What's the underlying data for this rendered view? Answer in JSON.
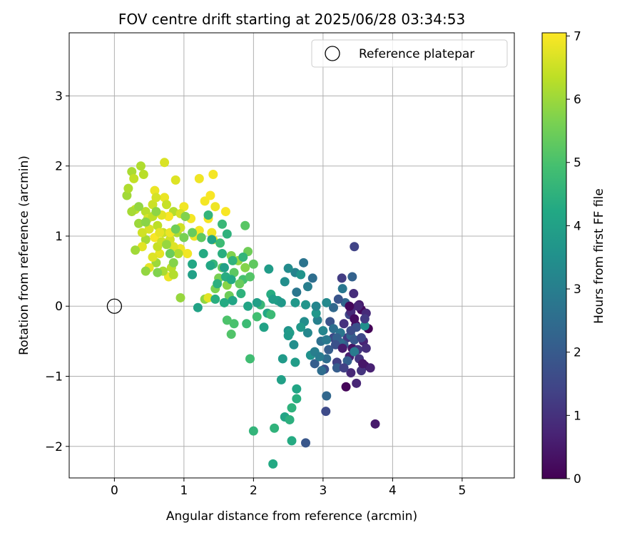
{
  "chart_data": {
    "type": "scatter",
    "title": "FOV centre drift starting at 2025/06/28 03:34:53",
    "xlabel": "Angular distance from reference (arcmin)",
    "ylabel": "Rotation from reference (arcmin)",
    "xlim": [
      -0.65,
      5.75
    ],
    "ylim": [
      -2.45,
      3.9
    ],
    "xticks": [
      0,
      1,
      2,
      3,
      4,
      5
    ],
    "yticks": [
      -2,
      -1,
      0,
      1,
      2,
      3
    ],
    "grid": true,
    "legend": {
      "location": "top-right",
      "entries": [
        "Reference platepar"
      ]
    },
    "colorbar": {
      "label": "Hours from first FF file",
      "range": [
        0,
        7.05
      ],
      "ticks": [
        0,
        1,
        2,
        3,
        4,
        5,
        6,
        7
      ],
      "colormap": "viridis"
    },
    "reference_point": {
      "x": 0,
      "y": 0,
      "label": "Reference platepar"
    },
    "points": [
      [
        3.65,
        -0.32,
        0.05
      ],
      [
        3.33,
        -1.15,
        0.1
      ],
      [
        3.55,
        -0.05,
        0.2
      ],
      [
        3.47,
        -0.27,
        0.3
      ],
      [
        3.6,
        -0.85,
        0.35
      ],
      [
        3.42,
        -0.6,
        0.4
      ],
      [
        3.75,
        -1.68,
        0.5
      ],
      [
        3.52,
        0.02,
        0.55
      ],
      [
        3.38,
        -0.72,
        0.6
      ],
      [
        3.58,
        -0.5,
        0.7
      ],
      [
        3.48,
        -1.1,
        0.75
      ],
      [
        3.4,
        -0.95,
        0.8
      ],
      [
        3.62,
        -0.1,
        0.85
      ],
      [
        3.44,
        0.18,
        0.9
      ],
      [
        3.3,
        -0.25,
        1.0
      ],
      [
        3.55,
        -0.92,
        1.05
      ],
      [
        3.5,
        -0.62,
        1.1
      ],
      [
        3.35,
        -0.45,
        1.2
      ],
      [
        3.27,
        0.4,
        1.25
      ],
      [
        3.2,
        -0.8,
        1.3
      ],
      [
        3.45,
        0.85,
        1.4
      ],
      [
        3.38,
        -0.12,
        1.5
      ],
      [
        3.15,
        -0.45,
        1.55
      ],
      [
        3.04,
        -1.5,
        1.6
      ],
      [
        3.02,
        -0.9,
        1.7
      ],
      [
        3.48,
        -0.3,
        1.75
      ],
      [
        3.1,
        -0.22,
        1.8
      ],
      [
        2.75,
        -1.95,
        1.9
      ],
      [
        3.3,
        -0.55,
        2.0
      ],
      [
        3.2,
        -0.88,
        2.05
      ],
      [
        2.88,
        -0.82,
        2.1
      ],
      [
        3.42,
        0.42,
        2.2
      ],
      [
        3.32,
        0.05,
        2.3
      ],
      [
        3.05,
        -1.28,
        2.35
      ],
      [
        3.15,
        -0.02,
        2.4
      ],
      [
        3.05,
        -0.75,
        2.5
      ],
      [
        2.85,
        0.4,
        2.55
      ],
      [
        2.97,
        -0.5,
        2.6
      ],
      [
        2.72,
        0.62,
        2.7
      ],
      [
        2.62,
        0.2,
        2.75
      ],
      [
        3.28,
        0.25,
        2.8
      ],
      [
        3.45,
        -0.65,
        2.9
      ],
      [
        2.78,
        0.28,
        3.0
      ],
      [
        2.92,
        -0.2,
        3.05
      ],
      [
        2.6,
        0.48,
        3.1
      ],
      [
        3.0,
        -0.35,
        3.2
      ],
      [
        2.78,
        -0.38,
        3.25
      ],
      [
        3.05,
        0.05,
        3.3
      ],
      [
        2.5,
        0.54,
        3.35
      ],
      [
        2.73,
        -0.22,
        3.4
      ],
      [
        2.58,
        -0.55,
        3.45
      ],
      [
        3.6,
        -0.28,
        3.5
      ],
      [
        2.82,
        -0.7,
        3.55
      ],
      [
        2.5,
        -0.35,
        3.6
      ],
      [
        2.75,
        0.02,
        3.65
      ],
      [
        2.9,
        -0.1,
        3.7
      ],
      [
        2.68,
        -0.3,
        3.75
      ],
      [
        2.42,
        -0.75,
        3.8
      ],
      [
        2.6,
        -0.8,
        3.85
      ],
      [
        2.52,
        -0.38,
        3.9
      ],
      [
        2.35,
        0.08,
        3.95
      ],
      [
        2.4,
        -1.05,
        4.0
      ],
      [
        2.45,
        -1.58,
        4.1
      ],
      [
        2.62,
        -1.18,
        4.15
      ],
      [
        2.2,
        -0.1,
        4.2
      ],
      [
        2.28,
        -2.25,
        4.25
      ],
      [
        2.55,
        -1.92,
        4.3
      ],
      [
        2.25,
        0.17,
        4.35
      ],
      [
        2.62,
        -1.32,
        4.4
      ],
      [
        2.52,
        -1.62,
        4.45
      ],
      [
        2.55,
        -1.45,
        4.5
      ],
      [
        2.3,
        -1.74,
        4.55
      ],
      [
        2.0,
        -1.78,
        4.6
      ],
      [
        2.1,
        0.02,
        4.7
      ],
      [
        2.25,
        -0.12,
        4.75
      ],
      [
        1.9,
        -0.25,
        4.8
      ],
      [
        1.95,
        -0.75,
        4.85
      ],
      [
        2.05,
        -0.15,
        4.9
      ],
      [
        1.85,
        0.38,
        4.95
      ],
      [
        1.72,
        -0.25,
        5.0
      ],
      [
        1.62,
        -0.2,
        5.05
      ],
      [
        1.68,
        -0.4,
        5.1
      ],
      [
        1.95,
        0.42,
        5.15
      ],
      [
        1.88,
        1.15,
        5.2
      ],
      [
        1.72,
        0.48,
        5.25
      ],
      [
        2.0,
        0.6,
        5.3
      ],
      [
        1.55,
        0.55,
        5.35
      ],
      [
        1.8,
        0.32,
        5.4
      ],
      [
        1.65,
        0.15,
        5.45
      ],
      [
        1.92,
        0.78,
        5.5
      ],
      [
        1.58,
        0.05,
        5.55
      ],
      [
        1.5,
        0.4,
        5.6
      ],
      [
        1.45,
        0.25,
        5.65
      ],
      [
        1.68,
        0.72,
        5.7
      ],
      [
        1.88,
        0.55,
        5.75
      ],
      [
        1.62,
        0.3,
        5.8
      ],
      [
        1.3,
        0.1,
        5.85
      ],
      [
        1.78,
        0.65,
        5.9
      ],
      [
        0.95,
        0.12,
        5.95
      ],
      [
        0.6,
        0.62,
        6.0
      ],
      [
        0.18,
        1.58,
        6.05
      ],
      [
        0.45,
        0.95,
        6.1
      ],
      [
        0.25,
        1.92,
        6.15
      ],
      [
        0.38,
        2.0,
        6.2
      ],
      [
        0.85,
        1.35,
        6.25
      ],
      [
        0.45,
        1.35,
        6.3
      ],
      [
        0.62,
        1.15,
        6.35
      ],
      [
        0.28,
        1.82,
        6.4
      ],
      [
        0.7,
        1.05,
        6.45
      ],
      [
        0.55,
        1.45,
        6.5
      ],
      [
        0.8,
        0.95,
        6.55
      ],
      [
        0.48,
        1.25,
        6.6
      ],
      [
        0.72,
        2.05,
        6.65
      ],
      [
        0.88,
        1.8,
        6.7
      ],
      [
        0.4,
        0.85,
        6.75
      ],
      [
        0.65,
        0.75,
        6.8
      ],
      [
        0.58,
        1.65,
        6.85
      ],
      [
        1.22,
        1.82,
        6.9
      ],
      [
        1.0,
        1.42,
        6.92
      ],
      [
        1.42,
        1.88,
        6.95
      ],
      [
        1.35,
        1.25,
        6.97
      ],
      [
        1.6,
        1.35,
        7.0
      ],
      [
        0.95,
        0.82,
        6.9
      ],
      [
        1.1,
        1.25,
        6.95
      ],
      [
        0.78,
        1.28,
        7.0
      ],
      [
        1.42,
        0.95,
        6.98
      ],
      [
        1.15,
        1.0,
        6.9
      ],
      [
        1.3,
        1.5,
        6.95
      ],
      [
        0.58,
        0.98,
        7.0
      ],
      [
        1.05,
        0.75,
        6.92
      ],
      [
        0.72,
        1.55,
        6.85
      ],
      [
        1.45,
        1.42,
        6.88
      ],
      [
        0.5,
        0.55,
        6.8
      ],
      [
        0.78,
        0.42,
        6.85
      ],
      [
        1.35,
        0.12,
        6.75
      ],
      [
        1.4,
        1.05,
        6.9
      ],
      [
        1.22,
        1.08,
        6.95
      ],
      [
        1.38,
        1.58,
        7.0
      ],
      [
        0.65,
        1.05,
        6.8
      ],
      [
        0.3,
        1.38,
        6.4
      ],
      [
        0.42,
        1.88,
        6.3
      ],
      [
        0.2,
        1.68,
        6.2
      ],
      [
        0.25,
        1.35,
        6.1
      ],
      [
        0.35,
        1.18,
        6.0
      ],
      [
        0.3,
        0.8,
        6.05
      ],
      [
        0.55,
        1.28,
        6.35
      ],
      [
        0.62,
        0.85,
        6.45
      ],
      [
        0.82,
        0.55,
        6.3
      ],
      [
        0.9,
        1.05,
        6.15
      ],
      [
        0.95,
        1.12,
        6.55
      ],
      [
        0.7,
        0.5,
        6.15
      ],
      [
        0.45,
        0.5,
        5.9
      ],
      [
        0.68,
        0.92,
        6.5
      ],
      [
        0.85,
        0.45,
        6.25
      ],
      [
        0.6,
        1.55,
        6.6
      ],
      [
        0.85,
        0.85,
        6.7
      ],
      [
        0.5,
        1.1,
        6.65
      ],
      [
        0.75,
        1.45,
        6.45
      ],
      [
        0.95,
        1.32,
        6.6
      ],
      [
        0.68,
        1.3,
        6.75
      ],
      [
        0.8,
        1.05,
        6.85
      ],
      [
        0.4,
        1.05,
        6.55
      ],
      [
        0.55,
        0.7,
        6.7
      ],
      [
        0.92,
        0.75,
        6.2
      ],
      [
        0.75,
        0.88,
        5.95
      ],
      [
        0.6,
        1.35,
        5.85
      ],
      [
        0.45,
        1.2,
        5.8
      ],
      [
        0.85,
        0.62,
        5.75
      ],
      [
        1.02,
        1.28,
        5.7
      ],
      [
        1.0,
        0.98,
        5.6
      ],
      [
        0.88,
        1.1,
        5.5
      ],
      [
        1.12,
        1.05,
        5.4
      ],
      [
        0.8,
        0.75,
        5.45
      ],
      [
        1.25,
        0.98,
        5.3
      ],
      [
        0.35,
        1.42,
        5.9
      ],
      [
        0.62,
        0.48,
        5.7
      ],
      [
        1.35,
        1.3,
        4.6
      ],
      [
        1.55,
        1.17,
        4.7
      ],
      [
        1.62,
        1.03,
        4.5
      ],
      [
        1.52,
        0.9,
        4.8
      ],
      [
        1.7,
        0.65,
        4.55
      ],
      [
        1.42,
        0.6,
        4.65
      ],
      [
        1.55,
        0.75,
        4.4
      ],
      [
        1.6,
        0.42,
        4.35
      ],
      [
        1.85,
        0.7,
        4.6
      ],
      [
        1.45,
        0.1,
        4.4
      ],
      [
        1.38,
        0.58,
        4.2
      ],
      [
        1.68,
        0.38,
        4.25
      ],
      [
        1.58,
        0.05,
        4.3
      ],
      [
        1.7,
        0.08,
        4.15
      ],
      [
        1.4,
        0.95,
        4.1
      ],
      [
        1.2,
        -0.02,
        4.05
      ],
      [
        1.12,
        0.45,
        4.0
      ],
      [
        1.48,
        0.32,
        4.45
      ],
      [
        1.82,
        0.18,
        4.5
      ],
      [
        1.58,
        0.55,
        4.0
      ],
      [
        1.28,
        0.75,
        4.3
      ],
      [
        1.12,
        0.6,
        4.2
      ],
      [
        2.05,
        0.05,
        3.95
      ],
      [
        2.22,
        0.53,
        3.85
      ],
      [
        2.4,
        0.05,
        3.75
      ],
      [
        2.15,
        -0.3,
        4.05
      ],
      [
        1.92,
        0.0,
        4.1
      ],
      [
        2.28,
        0.1,
        3.9
      ],
      [
        2.5,
        -0.42,
        3.8
      ],
      [
        2.6,
        0.05,
        3.7
      ],
      [
        2.68,
        0.45,
        3.6
      ],
      [
        2.45,
        0.35,
        3.45
      ],
      [
        2.9,
        0.0,
        3.2
      ],
      [
        2.88,
        -0.65,
        3.0
      ],
      [
        2.95,
        -0.72,
        2.9
      ],
      [
        3.05,
        -0.48,
        2.85
      ],
      [
        3.25,
        -0.38,
        2.75
      ],
      [
        3.15,
        -0.32,
        2.6
      ],
      [
        2.98,
        -0.92,
        2.5
      ],
      [
        3.25,
        -0.52,
        2.45
      ],
      [
        3.4,
        -0.42,
        2.35
      ],
      [
        3.2,
        -0.45,
        2.2
      ],
      [
        3.35,
        -0.78,
        2.15
      ],
      [
        3.08,
        -0.62,
        2.05
      ],
      [
        3.45,
        -0.48,
        1.95
      ],
      [
        3.22,
        0.1,
        1.85
      ],
      [
        3.18,
        -0.55,
        1.75
      ],
      [
        3.4,
        -0.35,
        1.65
      ],
      [
        3.55,
        -0.45,
        1.5
      ],
      [
        3.3,
        -0.88,
        1.35
      ],
      [
        3.6,
        -0.18,
        1.2
      ],
      [
        3.52,
        -0.75,
        1.1
      ],
      [
        3.62,
        -0.6,
        0.95
      ],
      [
        3.4,
        -0.08,
        0.85
      ],
      [
        3.5,
        0.0,
        0.75
      ],
      [
        3.68,
        -0.88,
        0.65
      ],
      [
        3.28,
        -0.6,
        0.55
      ],
      [
        3.57,
        -0.82,
        0.45
      ],
      [
        3.45,
        -0.18,
        0.25
      ],
      [
        3.38,
        0.0,
        0.15
      ]
    ]
  }
}
